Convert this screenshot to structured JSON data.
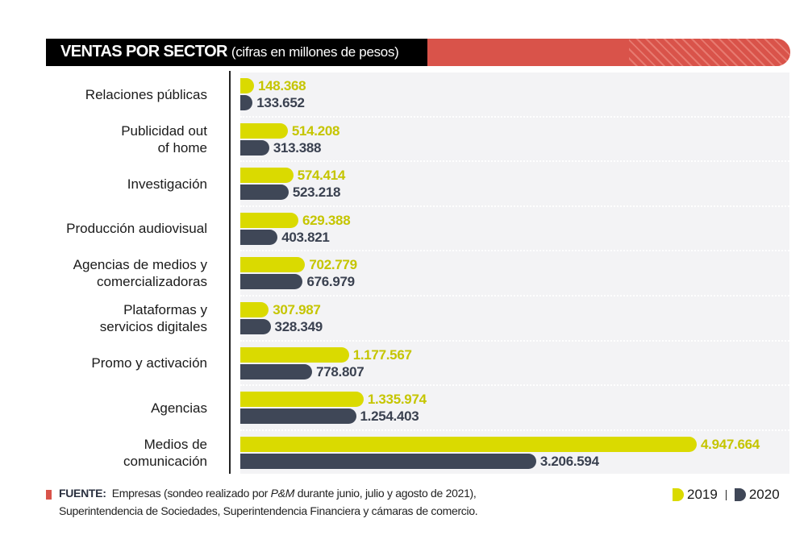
{
  "chart_data": {
    "type": "bar",
    "orientation": "horizontal",
    "title": "VENTAS POR SECTOR",
    "subtitle": "(cifras en millones de pesos)",
    "xlabel": "",
    "ylabel": "",
    "xlim": [
      0,
      5500000
    ],
    "grid": false,
    "legend_position": "bottom-right",
    "categories": [
      [
        "Relaciones públicas"
      ],
      [
        "Publicidad out",
        "of home"
      ],
      [
        "Investigación"
      ],
      [
        "Producción audiovisual"
      ],
      [
        "Agencias de medios y",
        "comercializadoras"
      ],
      [
        "Plataformas y",
        "servicios digitales"
      ],
      [
        "Promo y activación"
      ],
      [
        "Agencias"
      ],
      [
        "Medios de",
        "comunicación"
      ]
    ],
    "series": [
      {
        "name": "2019",
        "color": "#dada00",
        "label_color": "#c5c500",
        "values": [
          148368,
          514208,
          574414,
          629388,
          702779,
          307987,
          1177567,
          1335974,
          4947664
        ],
        "labels": [
          "148.368",
          "514.208",
          "574.414",
          "629.388",
          "702.779",
          "307.987",
          "1.177.567",
          "1.335.974",
          "4.947.664"
        ]
      },
      {
        "name": "2020",
        "color": "#3f4757",
        "label_color": "#3a4150",
        "values": [
          133652,
          313388,
          523218,
          403821,
          676979,
          328349,
          778807,
          1254403,
          3206594
        ],
        "labels": [
          "133.652",
          "313.388",
          "523.218",
          "403.821",
          "676.979",
          "328.349",
          "778.807",
          "1.254.403",
          "3.206.594"
        ]
      }
    ]
  },
  "header": {
    "title": "VENTAS POR SECTOR",
    "subtitle": "(cifras en millones de pesos)",
    "accent_color": "#d9534a"
  },
  "footer": {
    "source_label": "FUENTE:",
    "source_line1_pre": "Empresas (sondeo realizado por ",
    "source_line1_em": "P&M",
    "source_line1_post": " durante junio, julio y agosto de 2021),",
    "source_line2": "Superintendencia de Sociedades, Superintendencia Financiera y cámaras de comercio."
  },
  "legend": {
    "items": [
      {
        "label": "2019",
        "color": "#dada00"
      },
      {
        "label": "2020",
        "color": "#3f4757"
      }
    ]
  }
}
